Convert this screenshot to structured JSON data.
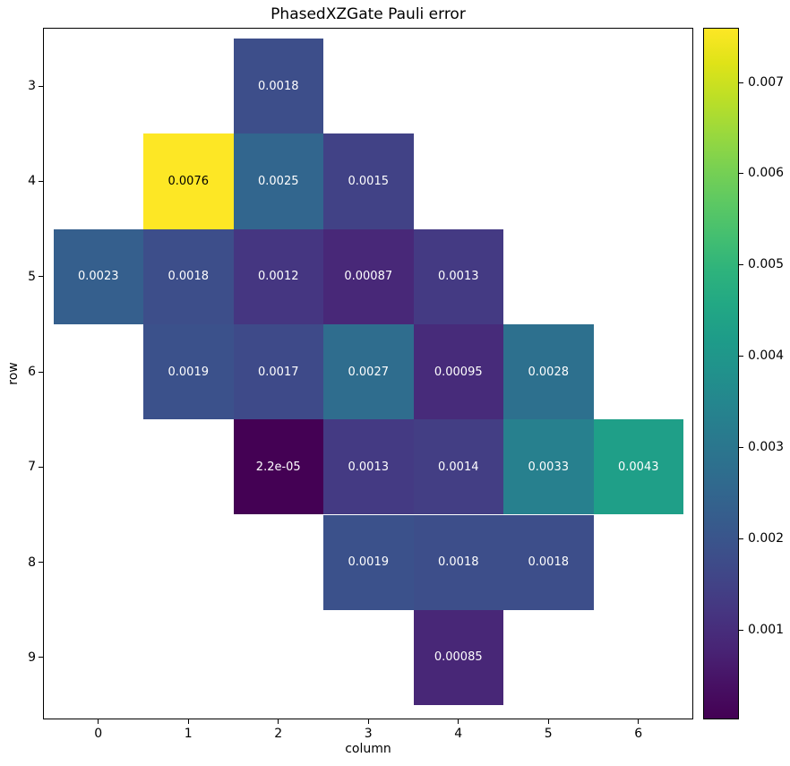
{
  "figure": {
    "title": "PhasedXZGate Pauli error"
  },
  "colors": {
    "background": "#ffffff",
    "axis": "#000000",
    "cell_text_light": "#ffffff",
    "cell_text_dark": "#000000",
    "colormap": "viridis"
  },
  "chart_data": {
    "type": "heatmap",
    "title": "PhasedXZGate Pauli error",
    "xlabel": "column",
    "ylabel": "row",
    "x_ticks": [
      "0",
      "1",
      "2",
      "3",
      "4",
      "5",
      "6"
    ],
    "y_ticks": [
      "3",
      "4",
      "5",
      "6",
      "7",
      "8",
      "9"
    ],
    "col_range": [
      0,
      6
    ],
    "row_range": [
      3,
      9
    ],
    "vmin": 2.2e-05,
    "vmax": 0.0076,
    "colormap": "viridis",
    "colorbar_ticks": [
      {
        "value": 0.001,
        "label": "0.001"
      },
      {
        "value": 0.002,
        "label": "0.002"
      },
      {
        "value": 0.003,
        "label": "0.003"
      },
      {
        "value": 0.004,
        "label": "0.004"
      },
      {
        "value": 0.005,
        "label": "0.005"
      },
      {
        "value": 0.006,
        "label": "0.006"
      },
      {
        "value": 0.007,
        "label": "0.007"
      }
    ],
    "cells": [
      {
        "row": 3,
        "col": 2,
        "value": 0.0018,
        "label": "0.0018"
      },
      {
        "row": 4,
        "col": 1,
        "value": 0.0076,
        "label": "0.0076"
      },
      {
        "row": 4,
        "col": 2,
        "value": 0.0025,
        "label": "0.0025"
      },
      {
        "row": 4,
        "col": 3,
        "value": 0.0015,
        "label": "0.0015"
      },
      {
        "row": 5,
        "col": 0,
        "value": 0.0023,
        "label": "0.0023"
      },
      {
        "row": 5,
        "col": 1,
        "value": 0.0018,
        "label": "0.0018"
      },
      {
        "row": 5,
        "col": 2,
        "value": 0.0012,
        "label": "0.0012"
      },
      {
        "row": 5,
        "col": 3,
        "value": 0.00087,
        "label": "0.00087"
      },
      {
        "row": 5,
        "col": 4,
        "value": 0.0013,
        "label": "0.0013"
      },
      {
        "row": 6,
        "col": 1,
        "value": 0.0019,
        "label": "0.0019"
      },
      {
        "row": 6,
        "col": 2,
        "value": 0.0017,
        "label": "0.0017"
      },
      {
        "row": 6,
        "col": 3,
        "value": 0.0027,
        "label": "0.0027"
      },
      {
        "row": 6,
        "col": 4,
        "value": 0.00095,
        "label": "0.00095"
      },
      {
        "row": 6,
        "col": 5,
        "value": 0.0028,
        "label": "0.0028"
      },
      {
        "row": 7,
        "col": 2,
        "value": 2.2e-05,
        "label": "2.2e-05"
      },
      {
        "row": 7,
        "col": 3,
        "value": 0.0013,
        "label": "0.0013"
      },
      {
        "row": 7,
        "col": 4,
        "value": 0.0014,
        "label": "0.0014"
      },
      {
        "row": 7,
        "col": 5,
        "value": 0.0033,
        "label": "0.0033"
      },
      {
        "row": 7,
        "col": 6,
        "value": 0.0043,
        "label": "0.0043"
      },
      {
        "row": 8,
        "col": 3,
        "value": 0.0019,
        "label": "0.0019"
      },
      {
        "row": 8,
        "col": 4,
        "value": 0.0018,
        "label": "0.0018"
      },
      {
        "row": 8,
        "col": 5,
        "value": 0.0018,
        "label": "0.0018"
      },
      {
        "row": 9,
        "col": 4,
        "value": 0.00085,
        "label": "0.00085"
      }
    ]
  }
}
